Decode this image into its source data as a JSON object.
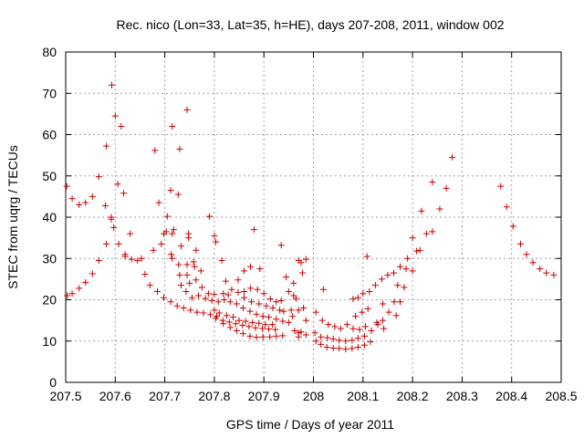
{
  "chart_data": {
    "type": "scatter",
    "title": "Rec. nico (Lon=33, Lat=35, h=HE), days 207-208, 2011, window 002",
    "xlabel": "GPS time / Days of year 2011",
    "ylabel": "STEC from uqrg / TECUs",
    "xlim": [
      207.5,
      208.5
    ],
    "ylim": [
      0,
      80
    ],
    "xticks": [
      207.5,
      207.6,
      207.7,
      207.8,
      207.9,
      208.0,
      208.1,
      208.2,
      208.3,
      208.4,
      208.5
    ],
    "xtick_labels": [
      "207.5",
      "207.6",
      "207.7",
      "207.8",
      "207.9",
      "208",
      "208.1",
      "208.2",
      "208.3",
      "208.4",
      "208.5"
    ],
    "yticks": [
      0,
      10,
      20,
      30,
      40,
      50,
      60,
      70,
      80
    ],
    "ytick_labels": [
      "0",
      "10",
      "20",
      "30",
      "40",
      "50",
      "60",
      "70",
      "80"
    ],
    "grid": true,
    "marker": "+",
    "color": "#cc0000",
    "series": [
      {
        "name": "STEC",
        "points": [
          [
            207.502,
            47.5
          ],
          [
            207.513,
            44.5
          ],
          [
            207.527,
            43
          ],
          [
            207.54,
            43.5
          ],
          [
            207.554,
            45
          ],
          [
            207.567,
            49.8
          ],
          [
            207.582,
            57.2
          ],
          [
            207.593,
            72
          ],
          [
            207.6,
            64.5
          ],
          [
            207.612,
            62
          ],
          [
            207.503,
            21
          ],
          [
            207.513,
            21.5
          ],
          [
            207.527,
            22.8
          ],
          [
            207.54,
            24.2
          ],
          [
            207.554,
            26.3
          ],
          [
            207.567,
            29.5
          ],
          [
            207.582,
            33.5
          ],
          [
            207.597,
            37.5
          ],
          [
            207.607,
            33.5
          ],
          [
            207.62,
            31
          ],
          [
            207.58,
            42.8
          ],
          [
            207.592,
            39.5
          ],
          [
            207.592,
            40
          ],
          [
            207.605,
            48
          ],
          [
            207.617,
            45.8
          ],
          [
            207.63,
            36
          ],
          [
            207.62,
            30.5
          ],
          [
            207.633,
            29.8
          ],
          [
            207.645,
            29.5
          ],
          [
            207.653,
            30
          ],
          [
            207.66,
            26.2
          ],
          [
            207.67,
            23.5
          ],
          [
            207.677,
            32
          ],
          [
            207.68,
            56.2
          ],
          [
            207.688,
            43.5
          ],
          [
            207.693,
            33.5
          ],
          [
            207.698,
            36
          ],
          [
            207.703,
            36.5
          ],
          [
            207.705,
            40.2
          ],
          [
            207.685,
            22
          ],
          [
            207.698,
            20.5
          ],
          [
            207.712,
            19.5
          ],
          [
            207.725,
            18.5
          ],
          [
            207.738,
            18
          ],
          [
            207.752,
            17.5
          ],
          [
            207.765,
            17
          ],
          [
            207.778,
            16.8
          ],
          [
            207.792,
            16.4
          ],
          [
            207.805,
            16
          ],
          [
            207.712,
            46.5
          ],
          [
            207.715,
            62
          ],
          [
            207.727,
            45.5
          ],
          [
            207.73,
            56.5
          ],
          [
            207.733,
            33
          ],
          [
            207.745,
            66
          ],
          [
            207.748,
            36
          ],
          [
            207.748,
            35
          ],
          [
            207.758,
            29.2
          ],
          [
            207.763,
            32
          ],
          [
            207.715,
            36
          ],
          [
            207.718,
            37
          ],
          [
            207.713,
            31
          ],
          [
            207.715,
            30
          ],
          [
            207.728,
            28.5
          ],
          [
            207.73,
            26
          ],
          [
            207.745,
            26
          ],
          [
            207.745,
            28.5
          ],
          [
            207.76,
            28
          ],
          [
            207.773,
            27
          ],
          [
            207.733,
            23.5
          ],
          [
            207.743,
            22
          ],
          [
            207.755,
            20.5
          ],
          [
            207.768,
            21
          ],
          [
            207.782,
            20.3
          ],
          [
            207.795,
            19.8
          ],
          [
            207.808,
            19.5
          ],
          [
            207.82,
            20
          ],
          [
            207.75,
            24
          ],
          [
            207.763,
            24.8
          ],
          [
            207.775,
            23
          ],
          [
            207.788,
            21.5
          ],
          [
            207.8,
            21.3
          ],
          [
            207.818,
            21.5
          ],
          [
            207.828,
            21.2
          ],
          [
            207.79,
            40.2
          ],
          [
            207.8,
            35.5
          ],
          [
            207.803,
            34
          ],
          [
            207.815,
            29.5
          ],
          [
            207.8,
            17.5
          ],
          [
            207.81,
            16.8
          ],
          [
            207.825,
            16.2
          ],
          [
            207.838,
            15.8
          ],
          [
            207.85,
            15
          ],
          [
            207.863,
            14.8
          ],
          [
            207.877,
            14.5
          ],
          [
            207.89,
            14.3
          ],
          [
            207.903,
            14
          ],
          [
            207.917,
            14
          ],
          [
            207.803,
            15.5
          ],
          [
            207.817,
            15
          ],
          [
            207.83,
            14.6
          ],
          [
            207.843,
            14.2
          ],
          [
            207.857,
            13.8
          ],
          [
            207.87,
            13.5
          ],
          [
            207.883,
            13.2
          ],
          [
            207.897,
            13
          ],
          [
            207.91,
            12.9
          ],
          [
            207.923,
            12.8
          ],
          [
            207.818,
            14.2
          ],
          [
            207.832,
            13.3
          ],
          [
            207.845,
            12.5
          ],
          [
            207.858,
            11.8
          ],
          [
            207.872,
            11.2
          ],
          [
            207.885,
            10.9
          ],
          [
            207.898,
            11
          ],
          [
            207.912,
            11
          ],
          [
            207.925,
            11.2
          ],
          [
            207.938,
            11.3
          ],
          [
            207.823,
            24.5
          ],
          [
            207.835,
            22.5
          ],
          [
            207.848,
            21.8
          ],
          [
            207.86,
            22
          ],
          [
            207.873,
            22.8
          ],
          [
            207.887,
            22.5
          ],
          [
            207.9,
            21.5
          ],
          [
            207.913,
            20.2
          ],
          [
            207.925,
            19.5
          ],
          [
            207.935,
            19.8
          ],
          [
            207.832,
            19.5
          ],
          [
            207.845,
            19
          ],
          [
            207.858,
            18
          ],
          [
            207.872,
            17.2
          ],
          [
            207.885,
            16.5
          ],
          [
            207.898,
            16
          ],
          [
            207.91,
            15.8
          ],
          [
            207.925,
            15.3
          ],
          [
            207.938,
            14.8
          ],
          [
            207.95,
            14.5
          ],
          [
            207.848,
            24.8
          ],
          [
            207.86,
            27
          ],
          [
            207.873,
            28
          ],
          [
            207.88,
            37
          ],
          [
            207.892,
            27.5
          ],
          [
            207.935,
            33.2
          ],
          [
            207.945,
            25.5
          ],
          [
            207.96,
            24
          ],
          [
            207.97,
            29.5
          ],
          [
            207.975,
            29
          ],
          [
            207.985,
            29.8
          ],
          [
            207.958,
            16
          ],
          [
            207.97,
            17.5
          ],
          [
            207.98,
            18
          ],
          [
            207.985,
            15
          ],
          [
            207.962,
            12.5
          ],
          [
            207.97,
            12
          ],
          [
            207.975,
            12.2
          ],
          [
            207.985,
            11.5
          ],
          [
            207.97,
            11
          ],
          [
            207.94,
            17.2
          ],
          [
            207.955,
            17.5
          ],
          [
            207.96,
            21
          ],
          [
            207.95,
            22
          ],
          [
            207.965,
            20.3
          ],
          [
            207.978,
            26.5
          ],
          [
            207.86,
            20.5
          ],
          [
            207.875,
            19.5
          ],
          [
            207.89,
            19
          ],
          [
            207.905,
            18.5
          ],
          [
            207.918,
            18
          ],
          [
            207.932,
            17.5
          ],
          [
            208.005,
            10
          ],
          [
            208.015,
            9.2
          ],
          [
            208.027,
            8.5
          ],
          [
            208.04,
            8.3
          ],
          [
            208.052,
            8.2
          ],
          [
            208.065,
            8
          ],
          [
            208.078,
            8.2
          ],
          [
            208.09,
            8.5
          ],
          [
            208.103,
            9
          ],
          [
            208.115,
            9.8
          ],
          [
            208.003,
            12
          ],
          [
            208.015,
            11
          ],
          [
            208.028,
            10.8
          ],
          [
            208.04,
            10.5
          ],
          [
            208.052,
            10.2
          ],
          [
            208.065,
            10
          ],
          [
            208.078,
            10.2
          ],
          [
            208.09,
            10.7
          ],
          [
            208.103,
            11.2
          ],
          [
            208.117,
            12.5
          ],
          [
            208.005,
            17
          ],
          [
            208.018,
            15
          ],
          [
            208.03,
            14
          ],
          [
            208.043,
            13.5
          ],
          [
            208.055,
            13
          ],
          [
            208.068,
            14
          ],
          [
            208.08,
            13
          ],
          [
            208.093,
            12.8
          ],
          [
            208.105,
            13.5
          ],
          [
            208.117,
            12.5
          ],
          [
            208.02,
            22.5
          ],
          [
            208.08,
            20.2
          ],
          [
            208.09,
            20.5
          ],
          [
            208.1,
            21.5
          ],
          [
            208.108,
            30.5
          ],
          [
            208.113,
            22
          ],
          [
            208.125,
            23.5
          ],
          [
            208.138,
            25
          ],
          [
            208.15,
            26
          ],
          [
            208.162,
            26.5
          ],
          [
            208.085,
            16
          ],
          [
            208.098,
            17
          ],
          [
            208.11,
            17.8
          ],
          [
            208.128,
            14.5
          ],
          [
            208.14,
            15
          ],
          [
            208.152,
            17
          ],
          [
            208.163,
            19.5
          ],
          [
            208.175,
            19.5
          ],
          [
            208.17,
            23.5
          ],
          [
            208.183,
            23
          ],
          [
            208.13,
            14
          ],
          [
            208.142,
            13
          ],
          [
            208.14,
            19
          ],
          [
            208.167,
            16.2
          ],
          [
            208.175,
            28
          ],
          [
            208.187,
            27.5
          ],
          [
            208.19,
            30
          ],
          [
            208.2,
            27
          ],
          [
            208.2,
            35
          ],
          [
            208.208,
            31.8
          ],
          [
            208.215,
            32
          ],
          [
            208.218,
            41.5
          ],
          [
            208.228,
            36
          ],
          [
            208.24,
            36.5
          ],
          [
            208.24,
            48.5
          ],
          [
            208.255,
            42
          ],
          [
            208.268,
            47
          ],
          [
            208.28,
            54.5
          ],
          [
            208.378,
            47.5
          ],
          [
            208.39,
            42.5
          ],
          [
            208.403,
            37.8
          ],
          [
            208.418,
            33.5
          ],
          [
            208.43,
            31
          ],
          [
            208.443,
            29
          ],
          [
            208.457,
            27.5
          ],
          [
            208.47,
            26.5
          ],
          [
            208.485,
            26
          ]
        ]
      }
    ]
  }
}
